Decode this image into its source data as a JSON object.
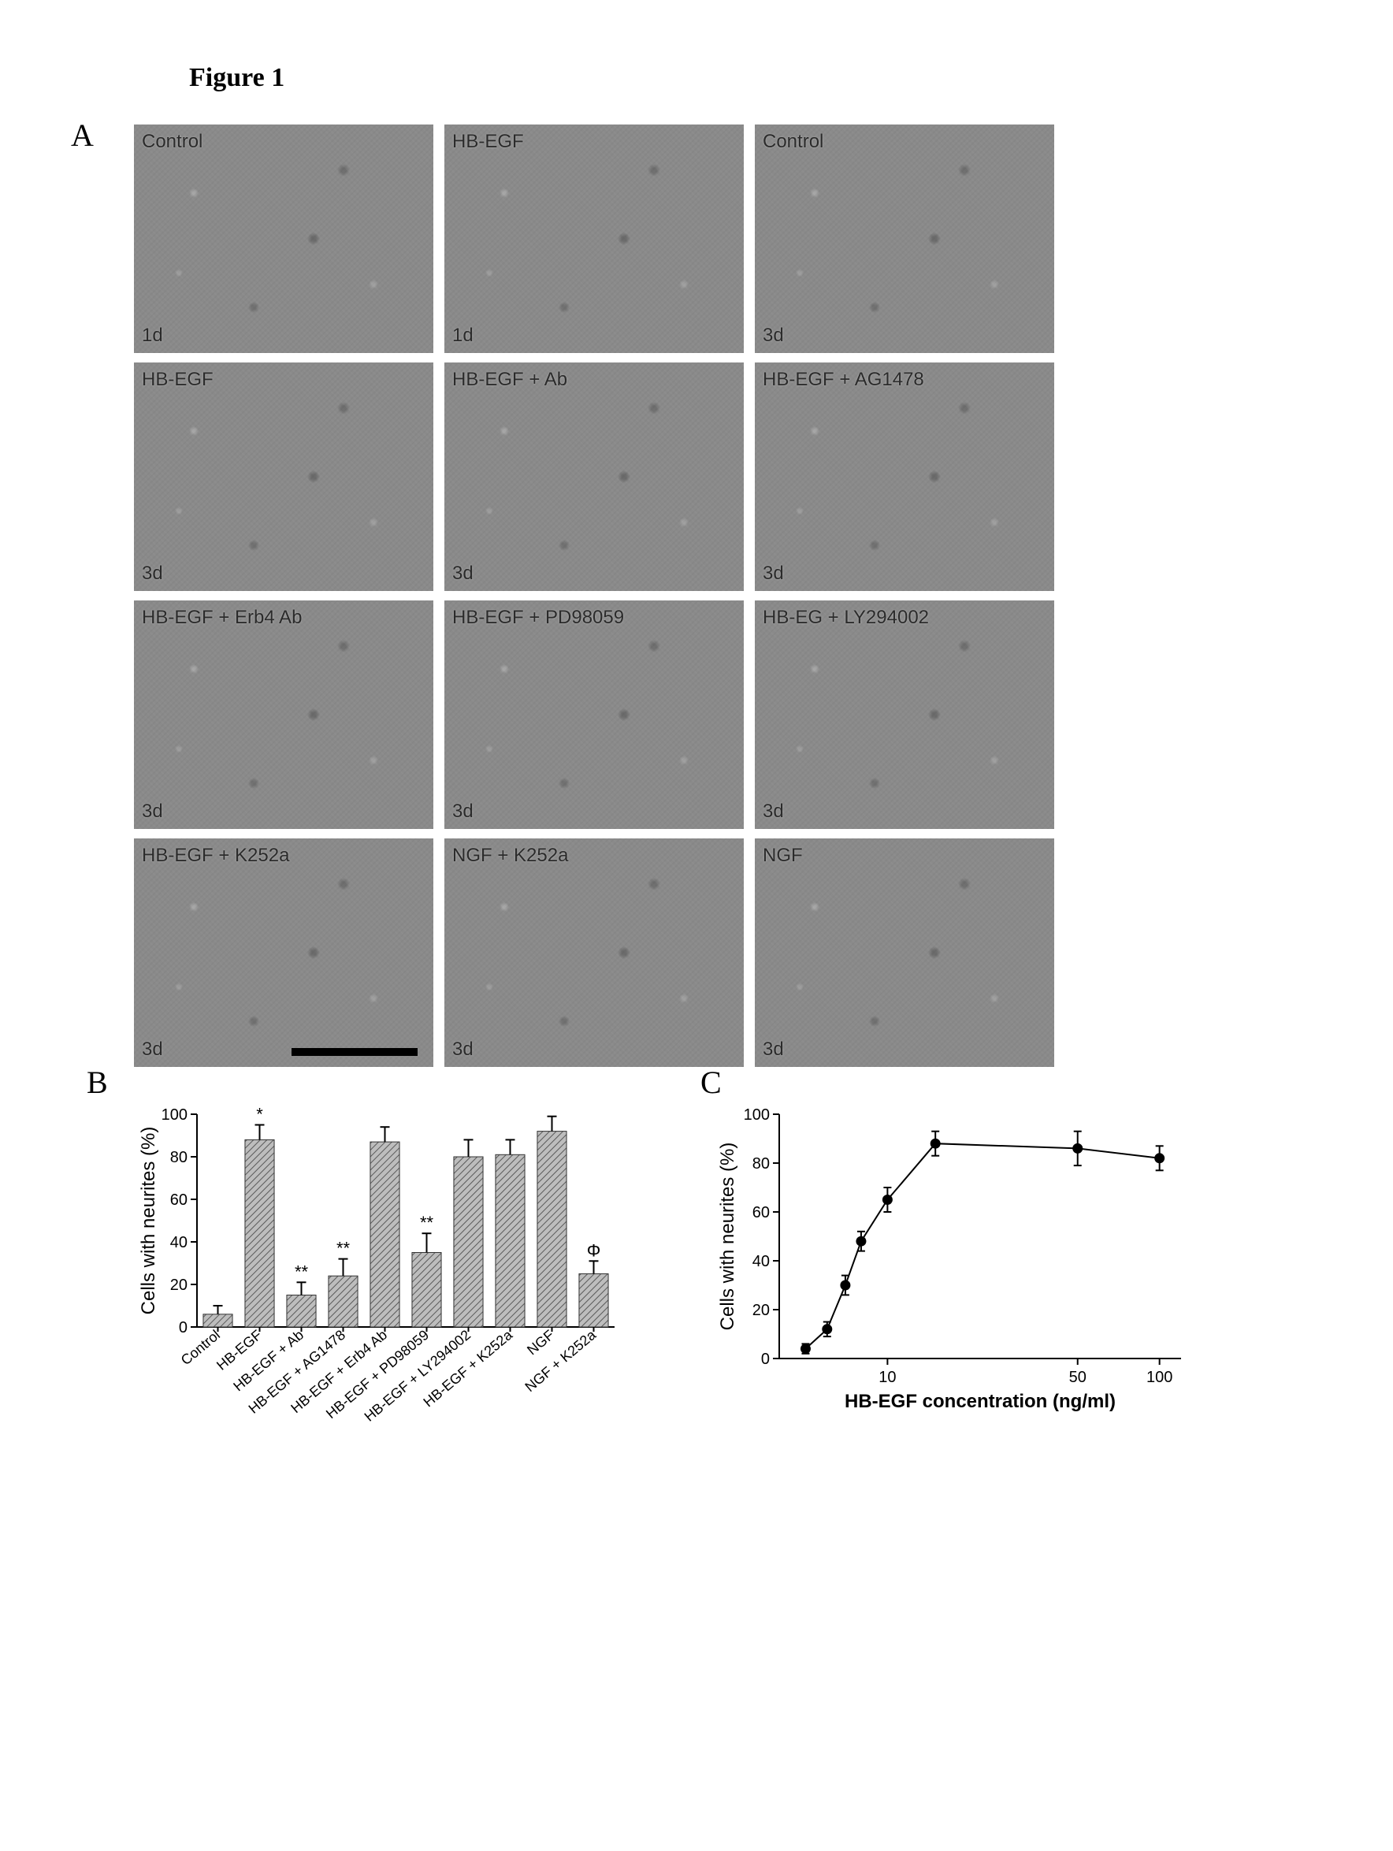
{
  "figure": {
    "title": "Figure 1",
    "panelA": {
      "label": "A",
      "micrographs": [
        {
          "top": "Control",
          "bottom": "1d"
        },
        {
          "top": "HB-EGF",
          "bottom": "1d"
        },
        {
          "top": "Control",
          "bottom": "3d"
        },
        {
          "top": "HB-EGF",
          "bottom": "3d"
        },
        {
          "top": "HB-EGF + Ab",
          "bottom": "3d"
        },
        {
          "top": "HB-EGF + AG1478",
          "bottom": "3d"
        },
        {
          "top": "HB-EGF + Erb4 Ab",
          "bottom": "3d"
        },
        {
          "top": "HB-EGF + PD98059",
          "bottom": "3d"
        },
        {
          "top": "HB-EG + LY294002",
          "bottom": "3d"
        },
        {
          "top": "HB-EGF + K252a",
          "bottom": "3d",
          "scaleBar": true
        },
        {
          "top": "NGF + K252a",
          "bottom": "3d"
        },
        {
          "top": "NGF",
          "bottom": "3d"
        }
      ]
    },
    "panelB": {
      "label": "B",
      "type": "bar",
      "ylabel": "Cells with neurites (%)",
      "ylim": [
        0,
        100
      ],
      "ytick_step": 20,
      "categories": [
        "Control",
        "HB-EGF",
        "HB-EGF + Ab",
        "HB-EGF + AG1478",
        "HB-EGF + Erb4 Ab",
        "HB-EGF + PD98059",
        "HB-EGF + LY294002",
        "HB-EGF + K252a",
        "NGF",
        "NGF + K252a"
      ],
      "values": [
        6,
        88,
        15,
        24,
        87,
        35,
        80,
        81,
        92,
        25
      ],
      "errors": [
        4,
        7,
        6,
        8,
        7,
        9,
        8,
        7,
        7,
        6
      ],
      "significance": [
        "",
        "*",
        "**",
        "**",
        "",
        "**",
        "",
        "",
        "",
        "Φ"
      ],
      "bar_fill": "hatched-gray",
      "bar_width": 0.7,
      "background_color": "#ffffff",
      "axis_color": "#000000",
      "label_fontsize": 18,
      "ylabel_fontsize": 24
    },
    "panelC": {
      "label": "C",
      "type": "line",
      "ylabel": "Cells with neurites (%)",
      "xlabel": "HB-EGF concentration (ng/ml)",
      "xscale": "log",
      "xlim": [
        4,
        120
      ],
      "ylim": [
        0,
        100
      ],
      "ytick_step": 20,
      "xticks": [
        10,
        50,
        100
      ],
      "x": [
        5,
        6,
        7,
        8,
        10,
        15,
        50,
        100
      ],
      "y": [
        4,
        12,
        30,
        48,
        65,
        88,
        86,
        82
      ],
      "yerr": [
        2,
        3,
        4,
        4,
        5,
        5,
        7,
        5
      ],
      "marker": "circle",
      "marker_size": 6,
      "line_color": "#000000",
      "marker_fill": "#000000",
      "line_width": 2,
      "background_color": "#ffffff",
      "label_fontsize": 20,
      "axis_label_fontsize": 24
    }
  }
}
